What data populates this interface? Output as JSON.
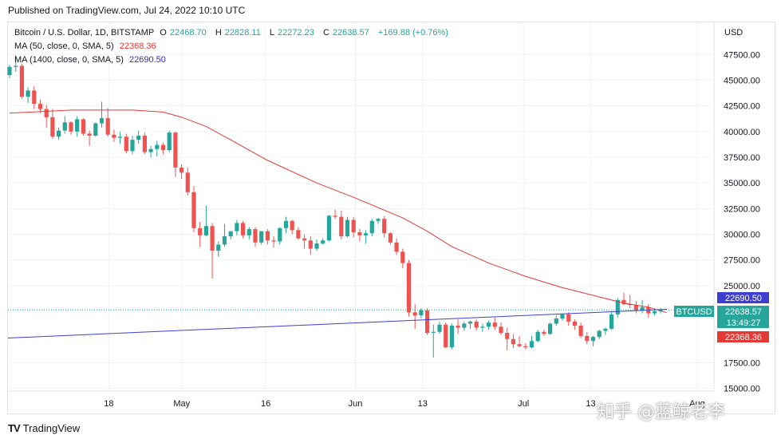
{
  "header": {
    "published": "Published on TradingView.com, Jul 24, 2022 10:10 UTC"
  },
  "legend": {
    "symbol": "Bitcoin / U.S. Dollar, 1D, BITSTAMP",
    "open_label": "O",
    "open": "22468.70",
    "high_label": "H",
    "high": "22828.11",
    "low_label": "L",
    "low": "22272.23",
    "close_label": "C",
    "close": "22638.57",
    "change": "+169.88 (+0.76%)",
    "ma50_label": "MA (50, close, 0, SMA, 5)",
    "ma50_value": "22368.36",
    "ma1400_label": "MA (1400, close, 0, SMA, 5)",
    "ma1400_value": "22690.50"
  },
  "footer": {
    "brand": "TradingView",
    "brand_mark": "TV"
  },
  "watermark": "知乎 @蓝鲸老李",
  "colors": {
    "up": "#26a69a",
    "down": "#ef5350",
    "ma50": "#e53935",
    "ma1400": "#3f3fcf",
    "last_price": "#26a69a"
  },
  "chart_data": {
    "type": "candlestick",
    "currency_label": "USD",
    "ylim": [
      14000,
      50000
    ],
    "y_ticks": [
      "47500.00",
      "45000.00",
      "42500.00",
      "40000.00",
      "37500.00",
      "35000.00",
      "32500.00",
      "30000.00",
      "27500.00",
      "25000.00",
      "17500.00",
      "15000.00"
    ],
    "x_ticks": [
      {
        "label": "18",
        "x": "2022-04-18"
      },
      {
        "label": "May",
        "x": "2022-05-01"
      },
      {
        "label": "16",
        "x": "2022-05-16"
      },
      {
        "label": "Jun",
        "x": "2022-06-01"
      },
      {
        "label": "13",
        "x": "2022-06-13"
      },
      {
        "label": "Jul",
        "x": "2022-07-01"
      },
      {
        "label": "13",
        "x": "2022-07-13"
      },
      {
        "label": "Aug",
        "x": "2022-08-01"
      }
    ],
    "x_range": [
      "2022-03-31",
      "2022-08-04"
    ],
    "price_tags": [
      {
        "label": "",
        "value": "22690.50",
        "series": "ma1400"
      },
      {
        "label": "BTCUSD",
        "value": "22638.57",
        "sub": "13:49:27",
        "series": "last"
      },
      {
        "label": "",
        "value": "22368.36",
        "series": "ma50"
      }
    ],
    "candles_ohlc": [
      [
        45500,
        46500,
        45200,
        46300
      ],
      [
        46300,
        47400,
        45800,
        46400
      ],
      [
        46400,
        46600,
        43200,
        43400
      ],
      [
        43400,
        44300,
        42800,
        44000
      ],
      [
        44000,
        44400,
        42200,
        42700
      ],
      [
        42700,
        43100,
        41800,
        42200
      ],
      [
        42200,
        42600,
        40400,
        41400
      ],
      [
        41400,
        42200,
        39300,
        39500
      ],
      [
        39500,
        40400,
        39200,
        40100
      ],
      [
        40100,
        41500,
        39800,
        40900
      ],
      [
        40900,
        41000,
        39700,
        40000
      ],
      [
        40000,
        41500,
        39500,
        41200
      ],
      [
        41200,
        41300,
        39600,
        39800
      ],
      [
        39800,
        40100,
        38600,
        39600
      ],
      [
        39600,
        40900,
        39500,
        40800
      ],
      [
        40800,
        42900,
        40400,
        41300
      ],
      [
        41300,
        42300,
        39500,
        39700
      ],
      [
        39700,
        40200,
        39000,
        39400
      ],
      [
        39400,
        40000,
        38800,
        39500
      ],
      [
        39500,
        39800,
        37900,
        38100
      ],
      [
        38100,
        39600,
        37800,
        39200
      ],
      [
        39200,
        40100,
        38800,
        39600
      ],
      [
        39600,
        39900,
        37800,
        38000
      ],
      [
        38000,
        38600,
        37500,
        38300
      ],
      [
        38300,
        39100,
        37600,
        38700
      ],
      [
        38700,
        38900,
        37800,
        38200
      ],
      [
        38200,
        40100,
        38000,
        39900
      ],
      [
        39900,
        40000,
        35600,
        36500
      ],
      [
        36500,
        36800,
        35400,
        36000
      ],
      [
        36000,
        36500,
        33800,
        34100
      ],
      [
        34100,
        34700,
        30200,
        30600
      ],
      [
        30600,
        31200,
        28800,
        29900
      ],
      [
        29900,
        32800,
        29800,
        30800
      ],
      [
        30800,
        31100,
        25700,
        28400
      ],
      [
        28400,
        29300,
        27800,
        29000
      ],
      [
        29000,
        31000,
        28800,
        29800
      ],
      [
        29800,
        30100,
        29500,
        30300
      ],
      [
        30300,
        31400,
        29900,
        31100
      ],
      [
        31100,
        31300,
        29600,
        29900
      ],
      [
        29900,
        30700,
        29500,
        30500
      ],
      [
        30500,
        30700,
        28800,
        29200
      ],
      [
        29200,
        30300,
        29000,
        30300
      ],
      [
        30300,
        30500,
        29000,
        29400
      ],
      [
        29400,
        29800,
        28700,
        29300
      ],
      [
        29300,
        30700,
        29000,
        30600
      ],
      [
        30600,
        31700,
        30100,
        31300
      ],
      [
        31300,
        31400,
        30000,
        30400
      ],
      [
        30400,
        30700,
        29500,
        29600
      ],
      [
        29600,
        30000,
        28600,
        29400
      ],
      [
        29400,
        29800,
        28000,
        28600
      ],
      [
        28600,
        29500,
        28400,
        29100
      ],
      [
        29100,
        29600,
        29000,
        29400
      ],
      [
        29400,
        31900,
        29300,
        31800
      ],
      [
        31800,
        32400,
        31500,
        31700
      ],
      [
        31700,
        32300,
        29500,
        29800
      ],
      [
        29800,
        31700,
        29700,
        31400
      ],
      [
        31400,
        31700,
        29700,
        30200
      ],
      [
        30200,
        30500,
        29300,
        29900
      ],
      [
        29900,
        30400,
        29100,
        30100
      ],
      [
        30100,
        31500,
        29800,
        31300
      ],
      [
        31300,
        31600,
        31000,
        31500
      ],
      [
        31500,
        31800,
        29700,
        30100
      ],
      [
        30100,
        30200,
        29000,
        29200
      ],
      [
        29200,
        29600,
        28000,
        28300
      ],
      [
        28300,
        28600,
        26700,
        27200
      ],
      [
        27200,
        27500,
        22000,
        22400
      ],
      [
        22400,
        23200,
        20800,
        22100
      ],
      [
        22100,
        22800,
        21800,
        22600
      ],
      [
        22600,
        22800,
        20200,
        20400
      ],
      [
        20400,
        21200,
        18000,
        20500
      ],
      [
        20500,
        21500,
        20300,
        21200
      ],
      [
        21200,
        21400,
        18900,
        19000
      ],
      [
        19000,
        21300,
        18800,
        21100
      ],
      [
        21100,
        21700,
        20300,
        20900
      ],
      [
        20900,
        21500,
        20600,
        21300
      ],
      [
        21300,
        21600,
        20800,
        21500
      ],
      [
        21500,
        21700,
        20600,
        20900
      ],
      [
        20900,
        21300,
        20500,
        21000
      ],
      [
        21000,
        21600,
        20700,
        21400
      ],
      [
        21400,
        21900,
        20700,
        21000
      ],
      [
        21000,
        21400,
        20200,
        20400
      ],
      [
        20400,
        20900,
        18700,
        19800
      ],
      [
        19800,
        20300,
        18900,
        19300
      ],
      [
        19300,
        20100,
        19000,
        19100
      ],
      [
        19100,
        19400,
        18800,
        19000
      ],
      [
        19000,
        20100,
        18900,
        19600
      ],
      [
        19600,
        20700,
        19500,
        20500
      ],
      [
        20500,
        20700,
        20100,
        20300
      ],
      [
        20300,
        21400,
        20200,
        21300
      ],
      [
        21300,
        22100,
        21100,
        21800
      ],
      [
        21800,
        22300,
        21600,
        22200
      ],
      [
        22200,
        22400,
        21100,
        21500
      ],
      [
        21500,
        21700,
        20700,
        21100
      ],
      [
        21100,
        21400,
        19900,
        20100
      ],
      [
        20100,
        20500,
        19300,
        19600
      ],
      [
        19600,
        20100,
        19100,
        20000
      ],
      [
        20000,
        20700,
        19800,
        20600
      ],
      [
        20600,
        20900,
        20200,
        20800
      ],
      [
        20800,
        22500,
        20700,
        22200
      ],
      [
        22200,
        23800,
        21900,
        23600
      ],
      [
        23600,
        24300,
        23100,
        23200
      ],
      [
        23200,
        24100,
        22800,
        23100
      ],
      [
        23100,
        23500,
        22300,
        22600
      ],
      [
        22600,
        23600,
        22300,
        22900
      ],
      [
        22900,
        23200,
        21900,
        22300
      ],
      [
        22300,
        22800,
        22100,
        22500
      ],
      [
        22500,
        22800,
        22300,
        22638
      ]
    ],
    "ma50_points": [
      [
        0,
        41800
      ],
      [
        10,
        42100
      ],
      [
        20,
        42100
      ],
      [
        25,
        41900
      ],
      [
        28,
        41400
      ],
      [
        32,
        40500
      ],
      [
        36,
        39200
      ],
      [
        42,
        37200
      ],
      [
        50,
        35000
      ],
      [
        56,
        33600
      ],
      [
        60,
        32600
      ],
      [
        64,
        31600
      ],
      [
        68,
        30300
      ],
      [
        72,
        28800
      ],
      [
        78,
        27200
      ],
      [
        84,
        25900
      ],
      [
        90,
        24800
      ],
      [
        96,
        23900
      ],
      [
        100,
        23300
      ],
      [
        104,
        22900
      ],
      [
        107,
        22368
      ]
    ],
    "ma1400_points": [
      [
        0,
        19900
      ],
      [
        107,
        22690
      ]
    ]
  }
}
